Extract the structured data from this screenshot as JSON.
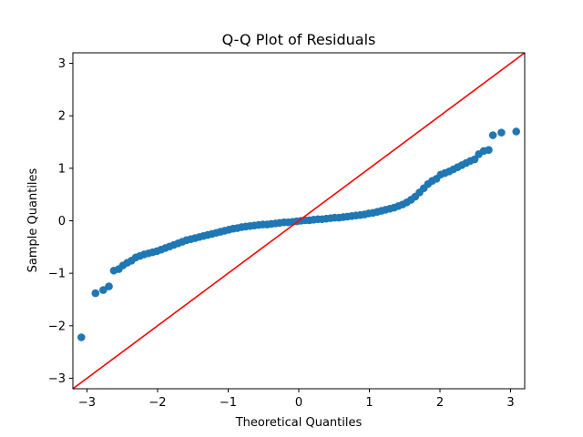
{
  "chart_data": {
    "type": "scatter",
    "title": "Q-Q Plot of Residuals",
    "xlabel": "Theoretical Quantiles",
    "ylabel": "Sample Quantiles",
    "xlim": [
      -3.2,
      3.2
    ],
    "ylim": [
      -3.2,
      3.2
    ],
    "xticks": [
      -3,
      -2,
      -1,
      0,
      1,
      2,
      3
    ],
    "yticks": [
      -3,
      -2,
      -1,
      0,
      1,
      2,
      3
    ],
    "tick_labels_x": [
      "−3",
      "−2",
      "−1",
      "0",
      "1",
      "2",
      "3"
    ],
    "tick_labels_y": [
      "−3",
      "−2",
      "−1",
      "0",
      "1",
      "2",
      "3"
    ],
    "grid": false,
    "legend": "none",
    "series": [
      {
        "color": "#1f77b4",
        "points": [
          [
            -3.08,
            -2.22
          ],
          [
            -2.88,
            -1.38
          ],
          [
            -2.77,
            -1.32
          ],
          [
            -2.69,
            -1.25
          ],
          [
            -2.62,
            -0.95
          ],
          [
            -2.55,
            -0.92
          ],
          [
            -2.49,
            -0.85
          ],
          [
            -2.43,
            -0.8
          ],
          [
            -2.37,
            -0.76
          ],
          [
            -2.31,
            -0.7
          ],
          [
            -2.25,
            -0.67
          ],
          [
            -2.19,
            -0.64
          ],
          [
            -2.13,
            -0.62
          ],
          [
            -2.07,
            -0.6
          ],
          [
            -2.01,
            -0.58
          ],
          [
            -1.95,
            -0.55
          ],
          [
            -1.89,
            -0.52
          ],
          [
            -1.83,
            -0.49
          ],
          [
            -1.77,
            -0.46
          ],
          [
            -1.71,
            -0.43
          ],
          [
            -1.65,
            -0.4
          ],
          [
            -1.59,
            -0.37
          ],
          [
            -1.53,
            -0.35
          ],
          [
            -1.47,
            -0.33
          ],
          [
            -1.41,
            -0.31
          ],
          [
            -1.35,
            -0.29
          ],
          [
            -1.29,
            -0.27
          ],
          [
            -1.23,
            -0.25
          ],
          [
            -1.17,
            -0.23
          ],
          [
            -1.11,
            -0.21
          ],
          [
            -1.05,
            -0.19
          ],
          [
            -0.99,
            -0.17
          ],
          [
            -0.93,
            -0.15
          ],
          [
            -0.87,
            -0.14
          ],
          [
            -0.81,
            -0.12
          ],
          [
            -0.75,
            -0.11
          ],
          [
            -0.69,
            -0.1
          ],
          [
            -0.63,
            -0.09
          ],
          [
            -0.57,
            -0.08
          ],
          [
            -0.51,
            -0.07
          ],
          [
            -0.45,
            -0.07
          ],
          [
            -0.39,
            -0.06
          ],
          [
            -0.33,
            -0.05
          ],
          [
            -0.27,
            -0.04
          ],
          [
            -0.21,
            -0.03
          ],
          [
            -0.15,
            -0.03
          ],
          [
            -0.09,
            -0.02
          ],
          [
            -0.03,
            -0.01
          ],
          [
            0.03,
            0.0
          ],
          [
            0.09,
            0.01
          ],
          [
            0.15,
            0.01
          ],
          [
            0.21,
            0.02
          ],
          [
            0.27,
            0.03
          ],
          [
            0.33,
            0.03
          ],
          [
            0.39,
            0.04
          ],
          [
            0.45,
            0.05
          ],
          [
            0.51,
            0.06
          ],
          [
            0.57,
            0.06
          ],
          [
            0.63,
            0.07
          ],
          [
            0.69,
            0.08
          ],
          [
            0.75,
            0.09
          ],
          [
            0.81,
            0.1
          ],
          [
            0.87,
            0.11
          ],
          [
            0.93,
            0.12
          ],
          [
            0.99,
            0.14
          ],
          [
            1.05,
            0.15
          ],
          [
            1.11,
            0.17
          ],
          [
            1.17,
            0.19
          ],
          [
            1.23,
            0.21
          ],
          [
            1.29,
            0.23
          ],
          [
            1.35,
            0.25
          ],
          [
            1.41,
            0.28
          ],
          [
            1.47,
            0.31
          ],
          [
            1.53,
            0.35
          ],
          [
            1.59,
            0.4
          ],
          [
            1.65,
            0.46
          ],
          [
            1.71,
            0.54
          ],
          [
            1.77,
            0.62
          ],
          [
            1.83,
            0.7
          ],
          [
            1.89,
            0.76
          ],
          [
            1.95,
            0.8
          ],
          [
            2.01,
            0.88
          ],
          [
            2.07,
            0.91
          ],
          [
            2.13,
            0.94
          ],
          [
            2.19,
            0.98
          ],
          [
            2.25,
            1.02
          ],
          [
            2.31,
            1.06
          ],
          [
            2.37,
            1.1
          ],
          [
            2.43,
            1.14
          ],
          [
            2.49,
            1.17
          ],
          [
            2.55,
            1.27
          ],
          [
            2.62,
            1.33
          ],
          [
            2.69,
            1.35
          ],
          [
            2.75,
            1.63
          ],
          [
            2.87,
            1.68
          ],
          [
            3.08,
            1.7
          ]
        ]
      }
    ],
    "reference_line": {
      "color": "#ff0000",
      "slope": 1,
      "intercept": 0
    }
  }
}
